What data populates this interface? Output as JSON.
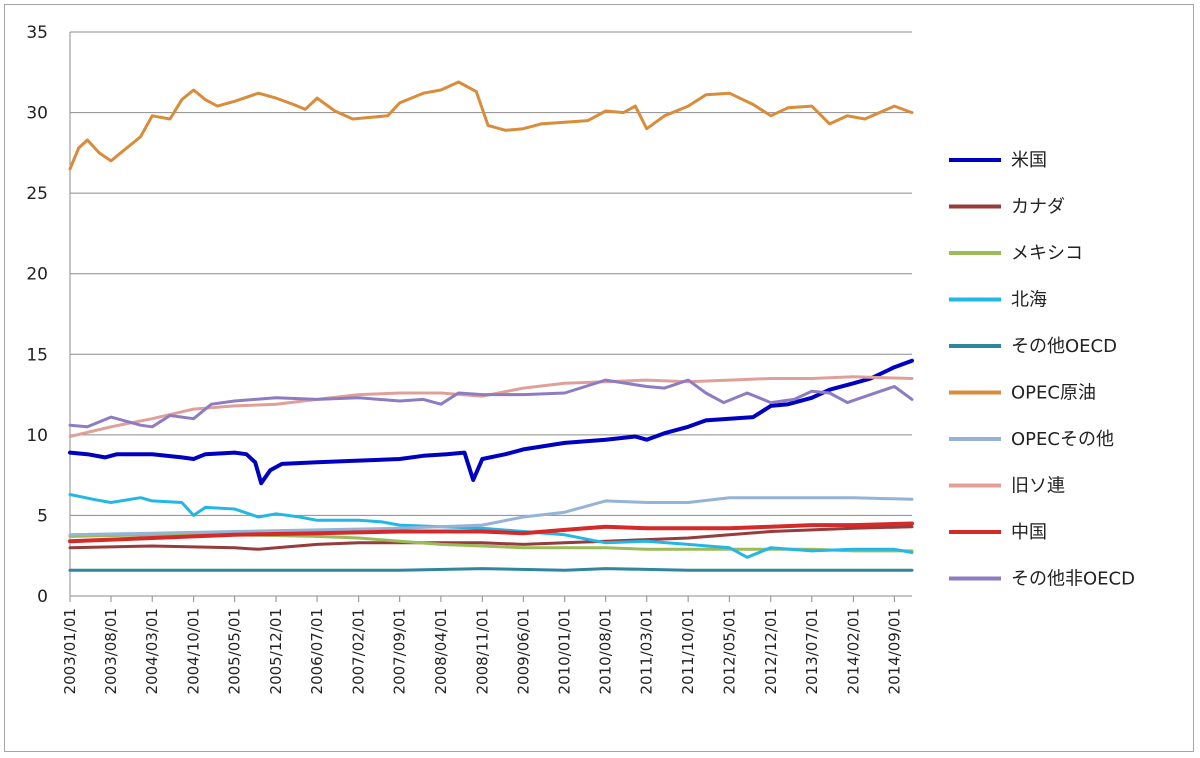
{
  "chart_data": {
    "type": "line",
    "title": "",
    "xlabel": "",
    "ylabel": "",
    "ylim": [
      0,
      35
    ],
    "yticks": [
      0,
      5,
      10,
      15,
      20,
      25,
      30,
      35
    ],
    "grid": true,
    "legend_position": "right",
    "x_tick_labels": [
      "2003/01/01",
      "2003/08/01",
      "2004/03/01",
      "2004/10/01",
      "2005/05/01",
      "2005/12/01",
      "2006/07/01",
      "2007/02/01",
      "2007/09/01",
      "2008/04/01",
      "2008/11/01",
      "2009/06/01",
      "2010/01/01",
      "2010/08/01",
      "2011/03/01",
      "2011/10/01",
      "2012/05/01",
      "2012/12/01",
      "2013/07/01",
      "2014/02/01",
      "2014/09/01"
    ],
    "x_end": "2014/12/01",
    "series": [
      {
        "name": "米国",
        "color": "#0000c0",
        "width": 4,
        "points": [
          [
            "2003/01/01",
            8.9
          ],
          [
            "2003/04/01",
            8.8
          ],
          [
            "2003/07/01",
            8.6
          ],
          [
            "2003/09/01",
            8.8
          ],
          [
            "2004/03/01",
            8.8
          ],
          [
            "2004/08/01",
            8.6
          ],
          [
            "2004/10/01",
            8.5
          ],
          [
            "2004/12/01",
            8.8
          ],
          [
            "2005/05/01",
            8.9
          ],
          [
            "2005/07/01",
            8.8
          ],
          [
            "2005/08/15",
            8.3
          ],
          [
            "2005/09/15",
            7.0
          ],
          [
            "2005/11/01",
            7.8
          ],
          [
            "2006/01/01",
            8.2
          ],
          [
            "2006/07/01",
            8.3
          ],
          [
            "2007/02/01",
            8.4
          ],
          [
            "2007/09/01",
            8.5
          ],
          [
            "2008/01/01",
            8.7
          ],
          [
            "2008/05/01",
            8.8
          ],
          [
            "2008/08/01",
            8.9
          ],
          [
            "2008/09/15",
            7.2
          ],
          [
            "2008/11/01",
            8.5
          ],
          [
            "2009/03/01",
            8.8
          ],
          [
            "2009/06/01",
            9.1
          ],
          [
            "2010/01/01",
            9.5
          ],
          [
            "2010/08/01",
            9.7
          ],
          [
            "2011/01/01",
            9.9
          ],
          [
            "2011/03/01",
            9.7
          ],
          [
            "2011/06/01",
            10.1
          ],
          [
            "2011/10/01",
            10.5
          ],
          [
            "2012/01/01",
            10.9
          ],
          [
            "2012/05/01",
            11.0
          ],
          [
            "2012/09/01",
            11.1
          ],
          [
            "2012/12/01",
            11.8
          ],
          [
            "2013/03/01",
            11.9
          ],
          [
            "2013/07/01",
            12.3
          ],
          [
            "2013/10/01",
            12.8
          ],
          [
            "2014/02/01",
            13.2
          ],
          [
            "2014/05/01",
            13.5
          ],
          [
            "2014/09/01",
            14.2
          ],
          [
            "2014/12/01",
            14.6
          ]
        ]
      },
      {
        "name": "カナダ",
        "color": "#963c3c",
        "width": 3,
        "points": [
          [
            "2003/01/01",
            3.0
          ],
          [
            "2004/03/01",
            3.1
          ],
          [
            "2005/05/01",
            3.0
          ],
          [
            "2005/09/01",
            2.9
          ],
          [
            "2006/07/01",
            3.2
          ],
          [
            "2007/02/01",
            3.3
          ],
          [
            "2007/09/01",
            3.3
          ],
          [
            "2008/04/01",
            3.3
          ],
          [
            "2008/11/01",
            3.3
          ],
          [
            "2009/06/01",
            3.2
          ],
          [
            "2010/01/01",
            3.3
          ],
          [
            "2010/08/01",
            3.4
          ],
          [
            "2011/03/01",
            3.5
          ],
          [
            "2011/10/01",
            3.6
          ],
          [
            "2012/05/01",
            3.8
          ],
          [
            "2012/12/01",
            4.0
          ],
          [
            "2013/07/01",
            4.1
          ],
          [
            "2014/02/01",
            4.2
          ],
          [
            "2014/12/01",
            4.3
          ]
        ]
      },
      {
        "name": "メキシコ",
        "color": "#9bbb59",
        "width": 3,
        "points": [
          [
            "2003/01/01",
            3.7
          ],
          [
            "2004/03/01",
            3.8
          ],
          [
            "2005/05/01",
            3.8
          ],
          [
            "2006/07/01",
            3.7
          ],
          [
            "2007/02/01",
            3.6
          ],
          [
            "2007/09/01",
            3.4
          ],
          [
            "2008/04/01",
            3.2
          ],
          [
            "2008/11/01",
            3.1
          ],
          [
            "2009/06/01",
            3.0
          ],
          [
            "2010/01/01",
            3.0
          ],
          [
            "2010/08/01",
            3.0
          ],
          [
            "2011/03/01",
            2.9
          ],
          [
            "2011/10/01",
            2.9
          ],
          [
            "2012/05/01",
            2.9
          ],
          [
            "2012/12/01",
            2.9
          ],
          [
            "2013/07/01",
            2.9
          ],
          [
            "2014/02/01",
            2.8
          ],
          [
            "2014/12/01",
            2.8
          ]
        ]
      },
      {
        "name": "北海",
        "color": "#23b7e5",
        "width": 3,
        "points": [
          [
            "2003/01/01",
            6.3
          ],
          [
            "2003/05/01",
            6.0
          ],
          [
            "2003/08/01",
            5.8
          ],
          [
            "2004/01/01",
            6.1
          ],
          [
            "2004/03/01",
            5.9
          ],
          [
            "2004/08/01",
            5.8
          ],
          [
            "2004/10/01",
            5.0
          ],
          [
            "2004/12/01",
            5.5
          ],
          [
            "2005/05/01",
            5.4
          ],
          [
            "2005/09/01",
            4.9
          ],
          [
            "2005/12/01",
            5.1
          ],
          [
            "2006/04/01",
            4.9
          ],
          [
            "2006/07/01",
            4.7
          ],
          [
            "2007/02/01",
            4.7
          ],
          [
            "2007/06/01",
            4.6
          ],
          [
            "2007/09/01",
            4.4
          ],
          [
            "2008/04/01",
            4.3
          ],
          [
            "2008/11/01",
            4.2
          ],
          [
            "2009/06/01",
            4.0
          ],
          [
            "2010/01/01",
            3.8
          ],
          [
            "2010/08/01",
            3.3
          ],
          [
            "2011/03/01",
            3.4
          ],
          [
            "2011/10/01",
            3.2
          ],
          [
            "2012/05/01",
            3.0
          ],
          [
            "2012/08/01",
            2.4
          ],
          [
            "2012/12/01",
            3.0
          ],
          [
            "2013/07/01",
            2.8
          ],
          [
            "2014/02/01",
            2.9
          ],
          [
            "2014/09/01",
            2.9
          ],
          [
            "2014/12/01",
            2.7
          ]
        ]
      },
      {
        "name": "その他OECD",
        "color": "#31859c",
        "width": 3,
        "points": [
          [
            "2003/01/01",
            1.6
          ],
          [
            "2004/03/01",
            1.6
          ],
          [
            "2005/05/01",
            1.6
          ],
          [
            "2006/07/01",
            1.6
          ],
          [
            "2007/09/01",
            1.6
          ],
          [
            "2008/11/01",
            1.7
          ],
          [
            "2010/01/01",
            1.6
          ],
          [
            "2010/08/01",
            1.7
          ],
          [
            "2011/10/01",
            1.6
          ],
          [
            "2012/12/01",
            1.6
          ],
          [
            "2014/02/01",
            1.6
          ],
          [
            "2014/12/01",
            1.6
          ]
        ]
      },
      {
        "name": "OPEC原油",
        "color": "#d98c3a",
        "width": 3,
        "points": [
          [
            "2003/01/01",
            26.5
          ],
          [
            "2003/02/15",
            27.8
          ],
          [
            "2003/04/01",
            28.3
          ],
          [
            "2003/06/01",
            27.5
          ],
          [
            "2003/08/01",
            27.0
          ],
          [
            "2003/10/01",
            27.6
          ],
          [
            "2004/01/01",
            28.5
          ],
          [
            "2004/03/01",
            29.8
          ],
          [
            "2004/06/01",
            29.6
          ],
          [
            "2004/08/01",
            30.8
          ],
          [
            "2004/10/01",
            31.4
          ],
          [
            "2004/12/01",
            30.8
          ],
          [
            "2005/02/01",
            30.4
          ],
          [
            "2005/05/01",
            30.7
          ],
          [
            "2005/09/01",
            31.2
          ],
          [
            "2005/12/01",
            30.9
          ],
          [
            "2006/03/01",
            30.5
          ],
          [
            "2006/05/01",
            30.2
          ],
          [
            "2006/07/01",
            30.9
          ],
          [
            "2006/10/01",
            30.1
          ],
          [
            "2007/01/01",
            29.6
          ],
          [
            "2007/04/01",
            29.7
          ],
          [
            "2007/07/01",
            29.8
          ],
          [
            "2007/09/01",
            30.6
          ],
          [
            "2008/01/01",
            31.2
          ],
          [
            "2008/04/01",
            31.4
          ],
          [
            "2008/07/01",
            31.9
          ],
          [
            "2008/10/01",
            31.3
          ],
          [
            "2008/12/01",
            29.2
          ],
          [
            "2009/03/01",
            28.9
          ],
          [
            "2009/06/01",
            29.0
          ],
          [
            "2009/09/01",
            29.3
          ],
          [
            "2010/01/01",
            29.4
          ],
          [
            "2010/05/01",
            29.5
          ],
          [
            "2010/08/01",
            30.1
          ],
          [
            "2010/11/01",
            30.0
          ],
          [
            "2011/01/01",
            30.4
          ],
          [
            "2011/03/01",
            29.0
          ],
          [
            "2011/06/01",
            29.8
          ],
          [
            "2011/10/01",
            30.4
          ],
          [
            "2012/01/01",
            31.1
          ],
          [
            "2012/05/01",
            31.2
          ],
          [
            "2012/09/01",
            30.5
          ],
          [
            "2012/12/01",
            29.8
          ],
          [
            "2013/03/01",
            30.3
          ],
          [
            "2013/07/01",
            30.4
          ],
          [
            "2013/10/01",
            29.3
          ],
          [
            "2014/01/01",
            29.8
          ],
          [
            "2014/04/01",
            29.6
          ],
          [
            "2014/09/01",
            30.4
          ],
          [
            "2014/12/01",
            30.0
          ]
        ]
      },
      {
        "name": "OPECその他",
        "color": "#95b3d7",
        "width": 3,
        "points": [
          [
            "2003/01/01",
            3.8
          ],
          [
            "2004/03/01",
            3.9
          ],
          [
            "2005/05/01",
            4.0
          ],
          [
            "2006/07/01",
            4.1
          ],
          [
            "2007/09/01",
            4.2
          ],
          [
            "2008/11/01",
            4.4
          ],
          [
            "2009/06/01",
            4.9
          ],
          [
            "2010/01/01",
            5.2
          ],
          [
            "2010/08/01",
            5.9
          ],
          [
            "2011/03/01",
            5.8
          ],
          [
            "2011/10/01",
            5.8
          ],
          [
            "2012/05/01",
            6.1
          ],
          [
            "2012/12/01",
            6.1
          ],
          [
            "2013/07/01",
            6.1
          ],
          [
            "2014/02/01",
            6.1
          ],
          [
            "2014/12/01",
            6.0
          ]
        ]
      },
      {
        "name": "旧ソ連",
        "color": "#e0a09a",
        "width": 3,
        "points": [
          [
            "2003/01/01",
            9.9
          ],
          [
            "2003/08/01",
            10.5
          ],
          [
            "2004/03/01",
            11.0
          ],
          [
            "2004/10/01",
            11.6
          ],
          [
            "2005/05/01",
            11.8
          ],
          [
            "2005/12/01",
            11.9
          ],
          [
            "2006/07/01",
            12.2
          ],
          [
            "2007/02/01",
            12.5
          ],
          [
            "2007/09/01",
            12.6
          ],
          [
            "2008/04/01",
            12.6
          ],
          [
            "2008/11/01",
            12.4
          ],
          [
            "2009/06/01",
            12.9
          ],
          [
            "2010/01/01",
            13.2
          ],
          [
            "2010/08/01",
            13.3
          ],
          [
            "2011/03/01",
            13.4
          ],
          [
            "2011/10/01",
            13.3
          ],
          [
            "2012/05/01",
            13.4
          ],
          [
            "2012/12/01",
            13.5
          ],
          [
            "2013/07/01",
            13.5
          ],
          [
            "2014/02/01",
            13.6
          ],
          [
            "2014/12/01",
            13.5
          ]
        ]
      },
      {
        "name": "中国",
        "color": "#d42a2a",
        "width": 4,
        "points": [
          [
            "2003/01/01",
            3.4
          ],
          [
            "2004/03/01",
            3.6
          ],
          [
            "2005/05/01",
            3.8
          ],
          [
            "2006/07/01",
            3.9
          ],
          [
            "2007/09/01",
            4.0
          ],
          [
            "2008/11/01",
            4.0
          ],
          [
            "2009/06/01",
            3.9
          ],
          [
            "2010/01/01",
            4.1
          ],
          [
            "2010/08/01",
            4.3
          ],
          [
            "2011/03/01",
            4.2
          ],
          [
            "2011/10/01",
            4.2
          ],
          [
            "2012/05/01",
            4.2
          ],
          [
            "2012/12/01",
            4.3
          ],
          [
            "2013/07/01",
            4.4
          ],
          [
            "2014/02/01",
            4.4
          ],
          [
            "2014/12/01",
            4.5
          ]
        ]
      },
      {
        "name": "その他非OECD",
        "color": "#8e7cc3",
        "width": 3,
        "points": [
          [
            "2003/01/01",
            10.6
          ],
          [
            "2003/04/01",
            10.5
          ],
          [
            "2003/08/01",
            11.1
          ],
          [
            "2004/01/01",
            10.6
          ],
          [
            "2004/03/01",
            10.5
          ],
          [
            "2004/06/01",
            11.2
          ],
          [
            "2004/10/01",
            11.0
          ],
          [
            "2005/01/01",
            11.9
          ],
          [
            "2005/05/01",
            12.1
          ],
          [
            "2005/12/01",
            12.3
          ],
          [
            "2006/07/01",
            12.2
          ],
          [
            "2007/02/01",
            12.3
          ],
          [
            "2007/09/01",
            12.1
          ],
          [
            "2008/01/01",
            12.2
          ],
          [
            "2008/04/01",
            11.9
          ],
          [
            "2008/07/01",
            12.6
          ],
          [
            "2008/11/01",
            12.5
          ],
          [
            "2009/06/01",
            12.5
          ],
          [
            "2010/01/01",
            12.6
          ],
          [
            "2010/08/01",
            13.4
          ],
          [
            "2011/03/01",
            13.0
          ],
          [
            "2011/06/01",
            12.9
          ],
          [
            "2011/10/01",
            13.4
          ],
          [
            "2012/01/01",
            12.6
          ],
          [
            "2012/04/01",
            12.0
          ],
          [
            "2012/08/01",
            12.6
          ],
          [
            "2012/12/01",
            12.0
          ],
          [
            "2013/04/01",
            12.2
          ],
          [
            "2013/07/01",
            12.7
          ],
          [
            "2013/10/01",
            12.6
          ],
          [
            "2014/01/01",
            12.0
          ],
          [
            "2014/05/01",
            12.5
          ],
          [
            "2014/09/01",
            13.0
          ],
          [
            "2014/12/01",
            12.2
          ]
        ]
      }
    ]
  }
}
